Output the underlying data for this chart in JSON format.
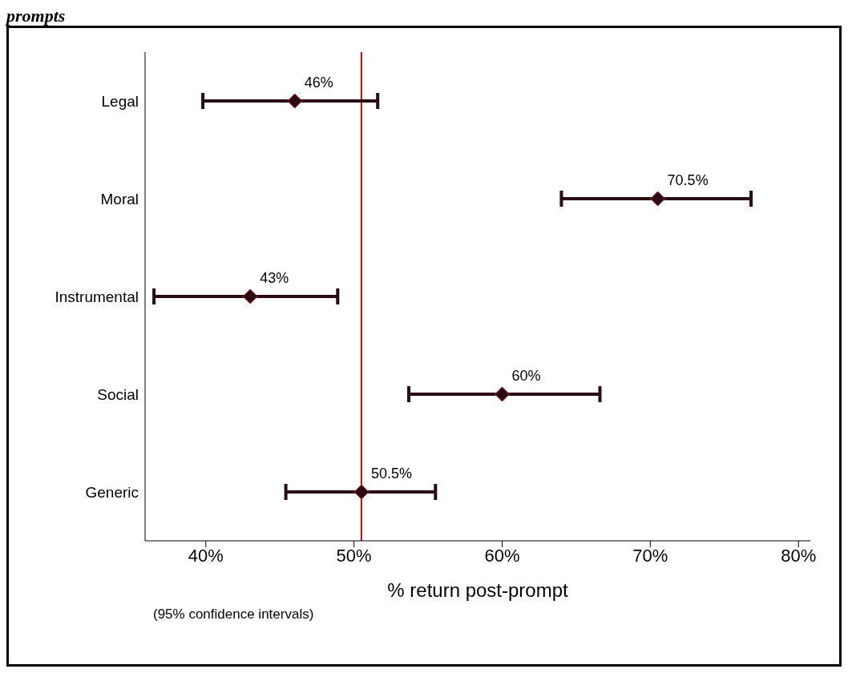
{
  "chart_data": {
    "type": "scatter",
    "title": "prompts",
    "xlabel": "% return post-prompt",
    "annotations": [
      "(95% confidence intervals)"
    ],
    "categories": [
      "Legal",
      "Moral",
      "Instrumental",
      "Social",
      "Generic"
    ],
    "orientation": "horizontal",
    "values": [
      46,
      70.5,
      43,
      60,
      50.5
    ],
    "value_labels": [
      "46%",
      "70.5%",
      "43%",
      "60%",
      "50.5%"
    ],
    "errors": [
      [
        39.8,
        51.6
      ],
      [
        64.0,
        76.8
      ],
      [
        36.5,
        48.9
      ],
      [
        53.7,
        66.6
      ],
      [
        45.4,
        55.5
      ]
    ],
    "color": "#2a0a14",
    "marker": "diamond",
    "xlim": [
      35.9,
      80.8
    ],
    "xticks": [
      {
        "value": 40,
        "label": "40%"
      },
      {
        "value": 50,
        "label": "50%"
      },
      {
        "value": 60,
        "label": "60%"
      },
      {
        "value": 70,
        "label": "70%"
      },
      {
        "value": 80,
        "label": "80%"
      }
    ],
    "ref_lines": [
      {
        "axis": "x",
        "value": 50.5,
        "color": "#b01010"
      }
    ],
    "grid": false,
    "legend": false
  }
}
